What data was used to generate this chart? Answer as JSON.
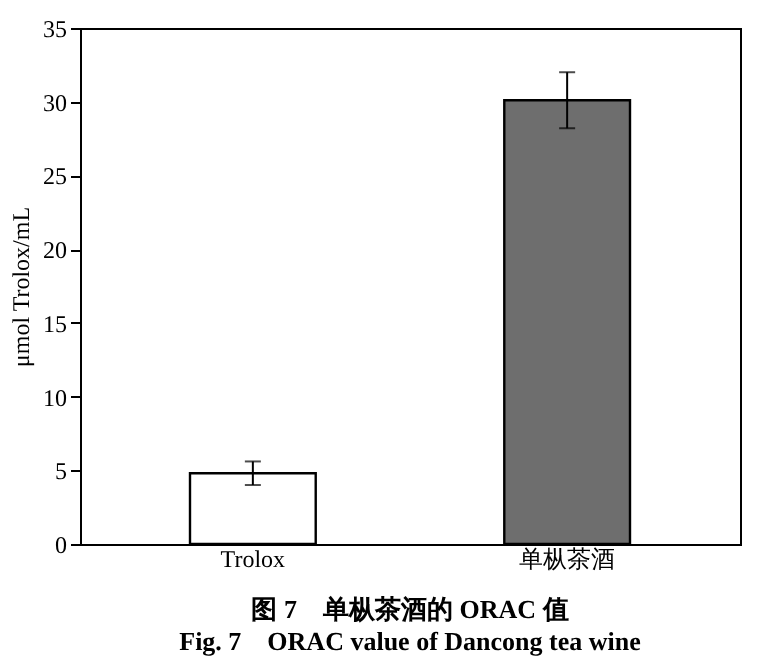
{
  "chart_data": {
    "type": "bar",
    "title": "图 7　单枞茶酒的 ORAC 值",
    "subtitle": "Fig. 7　ORAC value of Dancong tea wine",
    "ylabel": "μmol Trolox/mL",
    "categories": [
      "Trolox",
      "单枞茶酒"
    ],
    "values": [
      4.8,
      30.1
    ],
    "errors": [
      0.8,
      1.9
    ],
    "colors": [
      "#ffffff",
      "#6e6e6e"
    ],
    "ylim": [
      0,
      35
    ],
    "yticks": [
      0,
      5,
      10,
      15,
      20,
      25,
      30,
      35
    ],
    "grid": false
  }
}
